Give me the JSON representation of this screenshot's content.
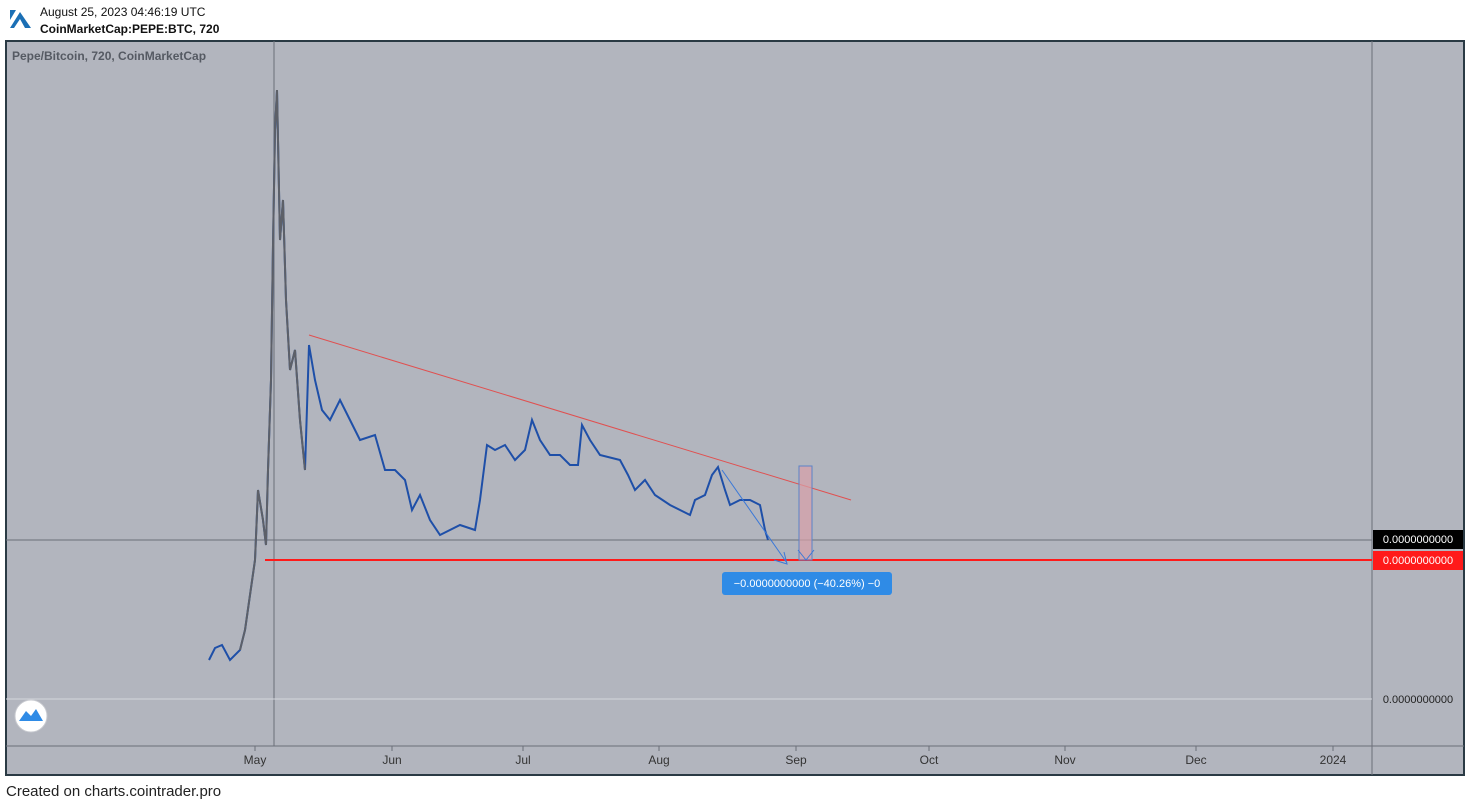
{
  "header": {
    "timestamp": "August 25, 2023 04:46:19 UTC",
    "symbol": "CoinMarketCap:PEPE:BTC, 720"
  },
  "chart": {
    "legend": "Pepe/Bitcoin, 720, CoinMarketCap",
    "time_axis": [
      "May",
      "Jun",
      "Jul",
      "Aug",
      "Sep",
      "Oct",
      "Nov",
      "Dec",
      "2024"
    ],
    "price_labels": {
      "last": "0.0000000000",
      "target": "0.0000000000",
      "axis": "0.0000000000"
    },
    "measure": "−0.0000000000 (−40.26%) −0"
  },
  "footer": "Created on charts.cointrader.pro"
}
